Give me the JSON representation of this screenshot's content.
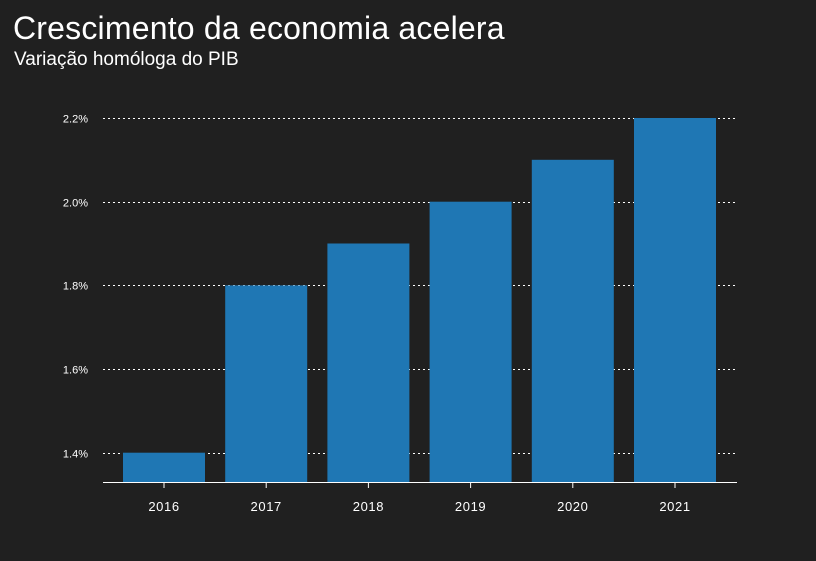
{
  "header": {
    "title": "Crescimento da economia acelera",
    "subtitle": "Variação homóloga do PIB"
  },
  "colors": {
    "background": "#202020",
    "bar": "#1f77b4",
    "grid": "#ffffff",
    "text": "#ffffff"
  },
  "chart_data": {
    "type": "bar",
    "title": "Crescimento da economia acelera",
    "subtitle": "Variação homóloga do PIB",
    "xlabel": "",
    "ylabel": "",
    "categories": [
      "2016",
      "2017",
      "2018",
      "2019",
      "2020",
      "2021"
    ],
    "values": [
      1.4,
      1.8,
      1.9,
      2.0,
      2.1,
      2.2
    ],
    "ylim": [
      1.33,
      2.2
    ],
    "yticks": [
      1.4,
      1.6,
      1.8,
      2.0,
      2.2
    ],
    "ytick_labels": [
      "1.4%",
      "1.6%",
      "1.8%",
      "2.0%",
      "2.2%"
    ],
    "grid": "horizontal dotted",
    "legend": "none"
  }
}
